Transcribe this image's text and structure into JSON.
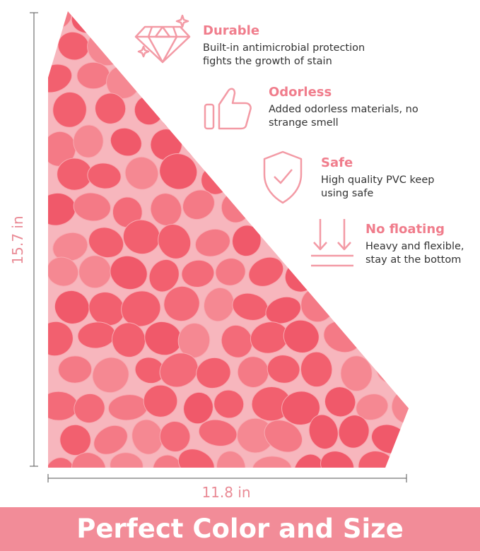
{
  "features": [
    {
      "title": "Durable",
      "lines": [
        "Built-in antimicrobial protection",
        "fights the growth of stain"
      ]
    },
    {
      "title": "Odorless",
      "lines": [
        "Added odorless materials, no",
        "strange smell"
      ]
    },
    {
      "title": "Safe",
      "lines": [
        "High quality PVC keep",
        "using safe"
      ]
    },
    {
      "title": "No floating",
      "lines": [
        "Heavy and flexible,",
        "stay at the bottom"
      ]
    }
  ],
  "dimensions": {
    "height": "15.7 in",
    "width": "11.8 in"
  },
  "banner": "Perfect Color and Size"
}
